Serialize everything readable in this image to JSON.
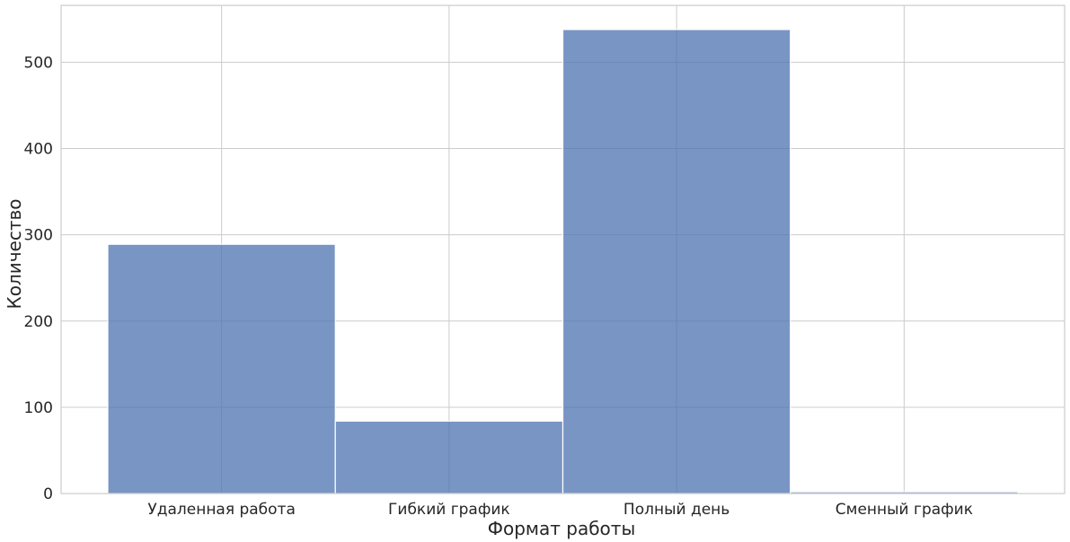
{
  "chart_data": {
    "type": "bar",
    "title": "",
    "xlabel": "Формат работы",
    "ylabel": "Количество",
    "categories": [
      "Удаленная работа",
      "Гибкий график",
      "Полный день",
      "Сменный график"
    ],
    "values": [
      289,
      84,
      538,
      2
    ],
    "ylim": [
      0,
      566
    ],
    "yticks": [
      "0",
      "100",
      "200",
      "300",
      "400",
      "500"
    ],
    "ytick_values": [
      0,
      100,
      200,
      300,
      400,
      500
    ],
    "grid": true,
    "legend": "none",
    "colors": {
      "bar_fill": "#4c72b0",
      "grid": "#cccccc",
      "spine": "#cccccc",
      "background": "#ffffff"
    }
  }
}
